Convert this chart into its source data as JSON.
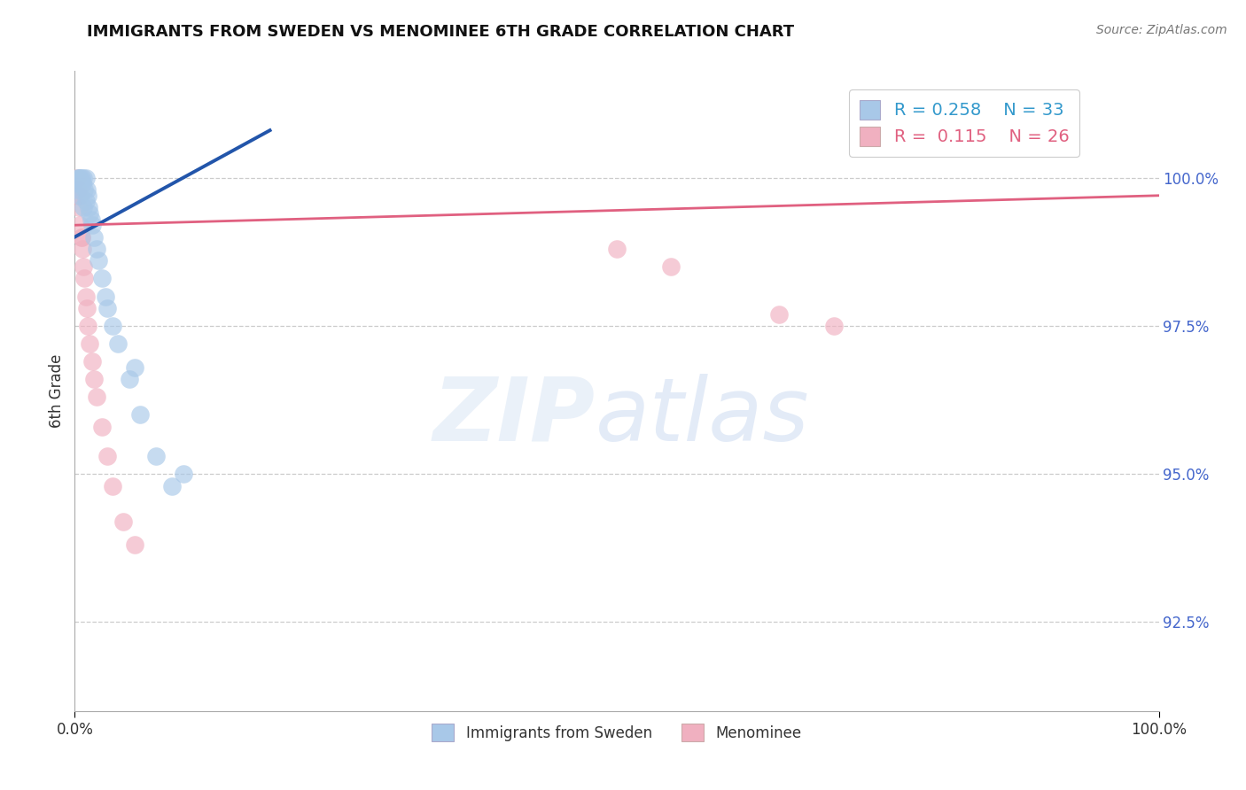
{
  "title": "IMMIGRANTS FROM SWEDEN VS MENOMINEE 6TH GRADE CORRELATION CHART",
  "source": "Source: ZipAtlas.com",
  "ylabel": "6th Grade",
  "xlim": [
    0.0,
    100.0
  ],
  "ylim": [
    91.0,
    101.8
  ],
  "yticks": [
    92.5,
    95.0,
    97.5,
    100.0
  ],
  "ytick_labels": [
    "92.5%",
    "95.0%",
    "97.5%",
    "100.0%"
  ],
  "blue_R": "0.258",
  "blue_N": "33",
  "pink_R": "0.115",
  "pink_N": "26",
  "blue_color": "#a8c8e8",
  "pink_color": "#f0b0c0",
  "blue_line_color": "#2255aa",
  "pink_line_color": "#e06080",
  "legend_label_blue": "Immigrants from Sweden",
  "legend_label_pink": "Menominee",
  "blue_scatter_x": [
    0.2,
    0.3,
    0.3,
    0.4,
    0.5,
    0.5,
    0.6,
    0.7,
    0.8,
    0.8,
    0.9,
    1.0,
    1.0,
    1.1,
    1.2,
    1.3,
    1.4,
    1.5,
    1.6,
    1.8,
    2.0,
    2.2,
    2.5,
    2.8,
    3.0,
    3.5,
    4.0,
    5.0,
    6.0,
    7.5,
    9.0,
    10.0,
    5.5
  ],
  "blue_scatter_y": [
    99.8,
    100.0,
    99.9,
    100.0,
    100.0,
    99.7,
    100.0,
    99.9,
    100.0,
    99.5,
    99.8,
    100.0,
    99.6,
    99.8,
    99.7,
    99.5,
    99.4,
    99.3,
    99.2,
    99.0,
    98.8,
    98.6,
    98.3,
    98.0,
    97.8,
    97.5,
    97.2,
    96.6,
    96.0,
    95.3,
    94.8,
    95.0,
    96.8
  ],
  "pink_scatter_x": [
    0.2,
    0.3,
    0.4,
    0.5,
    0.6,
    0.7,
    0.8,
    0.9,
    1.0,
    1.1,
    1.2,
    1.4,
    1.6,
    1.8,
    2.0,
    2.5,
    3.0,
    3.5,
    4.5,
    5.5,
    0.4,
    0.6,
    50.0,
    55.0,
    65.0,
    70.0
  ],
  "pink_scatter_y": [
    100.0,
    99.8,
    99.5,
    99.2,
    99.0,
    98.8,
    98.5,
    98.3,
    98.0,
    97.8,
    97.5,
    97.2,
    96.9,
    96.6,
    96.3,
    95.8,
    95.3,
    94.8,
    94.2,
    93.8,
    99.7,
    99.0,
    98.8,
    98.5,
    97.7,
    97.5
  ],
  "blue_line_x0": 0.0,
  "blue_line_y0": 99.0,
  "blue_line_x1": 18.0,
  "blue_line_y1": 100.8,
  "pink_line_x0": 0.0,
  "pink_line_y0": 99.2,
  "pink_line_x1": 100.0,
  "pink_line_y1": 99.7
}
